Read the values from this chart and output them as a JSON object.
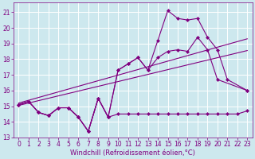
{
  "background_color": "#cde8ee",
  "grid_color": "#ffffff",
  "line_color": "#800080",
  "xlabel": "Windchill (Refroidissement éolien,°C)",
  "xlim": [
    -0.5,
    23.5
  ],
  "ylim": [
    13.0,
    21.6
  ],
  "yticks": [
    13,
    14,
    15,
    16,
    17,
    18,
    19,
    20,
    21
  ],
  "xticks": [
    0,
    1,
    2,
    3,
    4,
    5,
    6,
    7,
    8,
    9,
    10,
    11,
    12,
    13,
    14,
    15,
    16,
    17,
    18,
    19,
    20,
    21,
    22,
    23
  ],
  "curve_x": [
    0,
    1,
    2,
    3,
    4,
    5,
    6,
    7,
    8,
    9,
    10,
    11,
    12,
    13,
    14,
    15,
    16,
    17,
    18,
    19,
    20,
    21,
    22,
    23
  ],
  "curve_y": [
    15.1,
    15.3,
    14.6,
    14.4,
    14.9,
    14.9,
    14.3,
    13.4,
    15.5,
    14.3,
    17.3,
    17.7,
    18.1,
    17.3,
    19.2,
    21.1,
    20.6,
    20.5,
    20.6,
    19.4,
    18.6,
    16.7,
    null,
    16.0
  ],
  "flat_x": [
    0,
    1,
    2,
    3,
    4,
    5,
    6,
    7,
    8,
    9,
    10,
    11,
    12,
    13,
    14,
    15,
    16,
    17,
    18,
    19,
    20,
    21,
    22,
    23
  ],
  "flat_y": [
    15.1,
    15.3,
    14.6,
    14.4,
    14.9,
    14.9,
    14.3,
    13.4,
    15.5,
    14.3,
    14.5,
    14.5,
    14.5,
    14.5,
    14.5,
    14.5,
    14.5,
    14.5,
    14.5,
    14.5,
    14.5,
    14.5,
    14.5,
    14.7
  ],
  "mid_x": [
    0,
    1,
    2,
    3,
    4,
    5,
    6,
    7,
    8,
    9,
    10,
    11,
    12,
    13,
    14,
    15,
    16,
    17,
    18,
    19,
    20,
    21,
    22,
    23
  ],
  "mid_y": [
    15.1,
    15.3,
    14.6,
    14.4,
    14.9,
    14.9,
    14.3,
    13.4,
    15.5,
    14.3,
    17.3,
    17.7,
    18.1,
    17.3,
    18.1,
    18.5,
    18.6,
    18.5,
    19.4,
    18.6,
    16.7,
    null,
    null,
    16.0
  ],
  "trend1_x": [
    0,
    23
  ],
  "trend1_y": [
    15.05,
    18.55
  ],
  "trend2_x": [
    0,
    23
  ],
  "trend2_y": [
    15.2,
    19.3
  ],
  "marker_size": 2.5,
  "tick_fontsize": 5.5,
  "xlabel_fontsize": 6
}
